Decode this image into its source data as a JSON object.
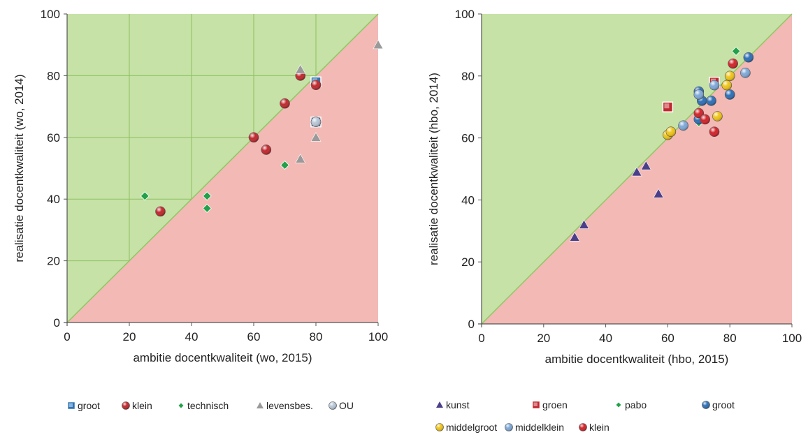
{
  "chart_data": [
    {
      "type": "scatter",
      "title": "",
      "xlabel": "ambitie docentkwaliteit (wo, 2015)",
      "ylabel": "realisatie docentkwaliteit (wo, 2014)",
      "xlim": [
        0,
        100
      ],
      "ylim": [
        0,
        100
      ],
      "xticks": [
        "0",
        "20",
        "40",
        "60",
        "80",
        "100"
      ],
      "yticks": [
        "0",
        "20",
        "40",
        "60",
        "80",
        "100"
      ],
      "grid": true,
      "regions": {
        "above_diagonal": "#c6e2a6",
        "below_diagonal": "#f2b9b5",
        "diagonal": "#8dc863"
      },
      "legend_position": "bottom",
      "series": [
        {
          "name": "groot",
          "marker": "square",
          "color": "#2e75b6",
          "points": [
            [
              80,
              78
            ],
            [
              80,
              65
            ]
          ]
        },
        {
          "name": "klein",
          "marker": "circle",
          "color": "#c0282d",
          "points": [
            [
              30,
              36
            ],
            [
              60,
              60
            ],
            [
              64,
              56
            ],
            [
              70,
              71
            ],
            [
              75,
              80
            ],
            [
              80,
              77
            ]
          ]
        },
        {
          "name": "technisch",
          "marker": "diamond",
          "color": "#22a14a",
          "points": [
            [
              25,
              41
            ],
            [
              45,
              41
            ],
            [
              45,
              37
            ],
            [
              70,
              51
            ]
          ]
        },
        {
          "name": "levensbes.",
          "marker": "triangle",
          "color": "#9a9a9a",
          "points": [
            [
              75,
              53
            ],
            [
              75,
              82
            ],
            [
              80,
              60
            ],
            [
              100,
              90
            ]
          ]
        },
        {
          "name": "OU",
          "marker": "circle",
          "color": "#b8c6d6",
          "points": [
            [
              80,
              65
            ]
          ]
        }
      ]
    },
    {
      "type": "scatter",
      "title": "",
      "xlabel": "ambitie docentkwaliteit (hbo, 2015)",
      "ylabel": "realisatie docentkwaliteit (hbo, 2014)",
      "xlim": [
        0,
        100
      ],
      "ylim": [
        0,
        100
      ],
      "xticks": [
        "0",
        "20",
        "40",
        "60",
        "80",
        "100"
      ],
      "yticks": [
        "0",
        "20",
        "40",
        "60",
        "80",
        "100"
      ],
      "grid": false,
      "regions": {
        "above_diagonal": "#c6e2a6",
        "below_diagonal": "#f2b9b5",
        "diagonal": "#8dc863"
      },
      "legend_position": "bottom",
      "series": [
        {
          "name": "kunst",
          "marker": "triangle",
          "color": "#4b3f8a",
          "points": [
            [
              30,
              28
            ],
            [
              33,
              32
            ],
            [
              50,
              49
            ],
            [
              53,
              51
            ],
            [
              57,
              42
            ]
          ]
        },
        {
          "name": "groen",
          "marker": "square",
          "color": "#c0282d",
          "points": [
            [
              60,
              70
            ],
            [
              75,
              78
            ]
          ]
        },
        {
          "name": "pabo",
          "marker": "diamond",
          "color": "#22a14a",
          "points": [
            [
              70,
              65
            ],
            [
              82,
              88
            ]
          ]
        },
        {
          "name": "groot",
          "marker": "circle",
          "color": "#2e6fb6",
          "points": [
            [
              70,
              75
            ],
            [
              70,
              66
            ],
            [
              71,
              72
            ],
            [
              74,
              72
            ],
            [
              80,
              74
            ],
            [
              86,
              86
            ]
          ]
        },
        {
          "name": "middelgroot",
          "marker": "circle",
          "color": "#f0c419",
          "points": [
            [
              60,
              61
            ],
            [
              61,
              62
            ],
            [
              76,
              67
            ],
            [
              79,
              77
            ],
            [
              80,
              80
            ]
          ]
        },
        {
          "name": "middelklein",
          "marker": "circle",
          "color": "#7ea8d8",
          "points": [
            [
              65,
              64
            ],
            [
              70,
              74
            ],
            [
              75,
              77
            ],
            [
              85,
              81
            ]
          ]
        },
        {
          "name": "klein",
          "marker": "circle",
          "color": "#d2232a",
          "points": [
            [
              70,
              68
            ],
            [
              72,
              66
            ],
            [
              75,
              62
            ],
            [
              81,
              84
            ]
          ]
        }
      ]
    }
  ],
  "legend_left": {
    "items": [
      "groot",
      "klein",
      "technisch",
      "levensbes.",
      "OU"
    ]
  },
  "legend_right": {
    "row1": [
      "kunst",
      "groen",
      "pabo",
      "groot"
    ],
    "row2": [
      "middelgroot",
      "middelklein",
      "klein"
    ]
  }
}
